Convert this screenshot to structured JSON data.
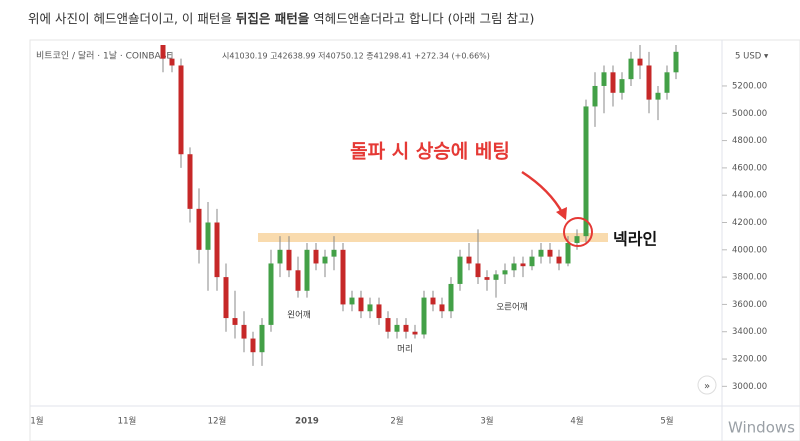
{
  "post_text": {
    "before": "위에 사진이 헤드앤숄더이고, 이 패턴을 ",
    "bold": "뒤집은 패턴을",
    "after": " 역헤드앤숄더라고 합니다 (아래 그림 참고)"
  },
  "chart_data": {
    "type": "candlestick",
    "symbol": "비트코인 / 달러 · 1날 · COINBASE",
    "ohlc_info": "시41030.19 고42638.99 저40750.12 종41298.41 +272.34 (+0.66%)",
    "currency_label": "5 USD ▾",
    "annotations": {
      "breakout": "돌파 시 상승에 베팅",
      "neckline": "넥라인",
      "left_shoulder": "왼어깨",
      "head": "머리",
      "right_shoulder": "오른어깨"
    },
    "watermark": "Windows",
    "up_color": "#43a047",
    "down_color": "#c62828",
    "categories": [
      "1월",
      null,
      null,
      null,
      null,
      null,
      null,
      null,
      null,
      null,
      "11월",
      null,
      null,
      null,
      null,
      null,
      null,
      null,
      null,
      null,
      "12월",
      null,
      null,
      null,
      null,
      null,
      null,
      null,
      null,
      null,
      "2019",
      null,
      null,
      null,
      null,
      null,
      null,
      null,
      null,
      null,
      "2월",
      null,
      null,
      null,
      null,
      null,
      null,
      null,
      null,
      null,
      "3월",
      null,
      null,
      null,
      null,
      null,
      null,
      null,
      null,
      null,
      "4월",
      null,
      null,
      null,
      null,
      null,
      null,
      null,
      null,
      null,
      "5월",
      null
    ],
    "open": [
      null,
      null,
      null,
      null,
      null,
      null,
      null,
      null,
      null,
      null,
      null,
      null,
      null,
      null,
      5500,
      5400,
      5350,
      4700,
      4300,
      4000,
      4200,
      3800,
      3500,
      3450,
      3350,
      3250,
      3450,
      3900,
      4000,
      3850,
      3700,
      4000,
      3900,
      3950,
      4000,
      3600,
      3650,
      3550,
      3600,
      3500,
      3400,
      3450,
      3400,
      3380,
      3650,
      3600,
      3550,
      3750,
      3950,
      3900,
      3800,
      3780,
      3820,
      3850,
      3900,
      3880,
      3950,
      4000,
      3950,
      3900,
      4050,
      4100,
      5050,
      5200,
      5300,
      5150,
      5250,
      5400,
      5350,
      5100,
      5150,
      5300
    ],
    "high": [
      null,
      null,
      null,
      null,
      null,
      null,
      null,
      null,
      null,
      null,
      null,
      null,
      null,
      null,
      5500,
      5450,
      5400,
      4750,
      4450,
      4350,
      4300,
      3900,
      3700,
      3550,
      3400,
      3500,
      4000,
      4100,
      4100,
      3950,
      4050,
      4050,
      4000,
      4100,
      4050,
      3700,
      3700,
      3650,
      3650,
      3550,
      3500,
      3500,
      3450,
      3700,
      3700,
      3650,
      3800,
      4000,
      4050,
      4150,
      3850,
      3850,
      3900,
      3950,
      3950,
      4000,
      4050,
      4050,
      4000,
      4100,
      4150,
      5100,
      5300,
      5350,
      5350,
      5300,
      5450,
      5500,
      5450,
      5200,
      5350,
      5500
    ],
    "low": [
      null,
      null,
      null,
      null,
      null,
      null,
      null,
      null,
      null,
      null,
      null,
      null,
      null,
      null,
      5300,
      5300,
      4600,
      4200,
      3900,
      3700,
      3700,
      3400,
      3350,
      3250,
      3150,
      3150,
      3400,
      3800,
      3800,
      3650,
      3650,
      3850,
      3800,
      3850,
      3550,
      3550,
      3500,
      3500,
      3450,
      3350,
      3350,
      3350,
      3350,
      3350,
      3550,
      3500,
      3500,
      3700,
      3850,
      3750,
      3700,
      3650,
      3750,
      3800,
      3800,
      3850,
      3900,
      3900,
      3850,
      3880,
      4000,
      4050,
      4900,
      5000,
      5050,
      5100,
      5200,
      5250,
      5000,
      4950,
      5100,
      5250
    ],
    "close": [
      null,
      null,
      null,
      null,
      null,
      null,
      null,
      null,
      null,
      null,
      null,
      null,
      null,
      null,
      5400,
      5350,
      4700,
      4300,
      4000,
      4200,
      3800,
      3500,
      3450,
      3350,
      3250,
      3450,
      3900,
      4000,
      3850,
      3700,
      4000,
      3900,
      3950,
      4000,
      3600,
      3650,
      3550,
      3600,
      3500,
      3400,
      3450,
      3400,
      3380,
      3650,
      3600,
      3550,
      3750,
      3950,
      3900,
      3800,
      3780,
      3820,
      3850,
      3900,
      3880,
      3950,
      4000,
      3950,
      3900,
      4050,
      4100,
      5050,
      5200,
      5300,
      5150,
      5250,
      5400,
      5350,
      5100,
      5150,
      5300,
      5450
    ],
    "ylim": [
      2900,
      5500
    ],
    "yticks": [
      {
        "value": 3000,
        "label": "3000.00"
      },
      {
        "value": 3200,
        "label": "3200.00"
      },
      {
        "value": 3400,
        "label": "3400.00"
      },
      {
        "value": 3600,
        "label": "3600.00"
      },
      {
        "value": 3800,
        "label": "3800.00"
      },
      {
        "value": 4000,
        "label": "4000.00"
      },
      {
        "value": 4200,
        "label": "4200.00"
      },
      {
        "value": 4400,
        "label": "4400.00"
      },
      {
        "value": 4600,
        "label": "4600.00"
      },
      {
        "value": 4800,
        "label": "4800.00"
      },
      {
        "value": 5000,
        "label": "5000.00"
      },
      {
        "value": 5200,
        "label": "5200.00"
      }
    ]
  }
}
